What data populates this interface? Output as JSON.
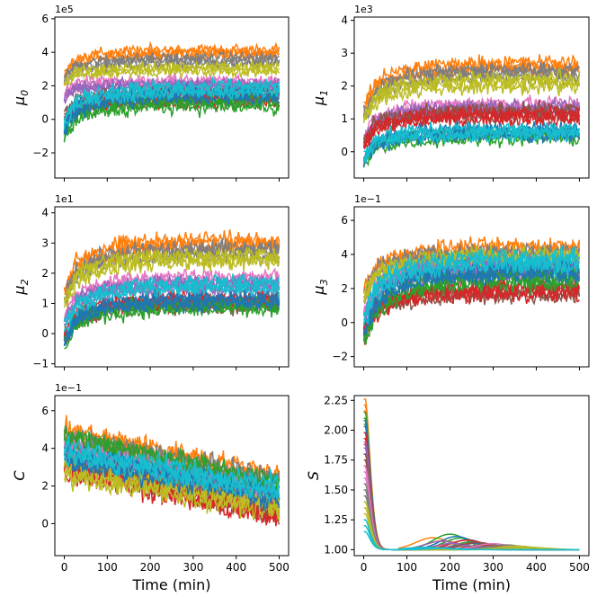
{
  "chart_data": [
    {
      "type": "line",
      "panel": "mu0",
      "ylabel": "μ",
      "ylabel_sub": "0",
      "multiplier": "1e5",
      "xlim": [
        -22,
        522
      ],
      "ylim": [
        -3.5,
        6.1
      ],
      "yticks": [
        -2,
        0,
        2,
        4,
        6
      ],
      "xticks": [
        0,
        100,
        200,
        300,
        400,
        500
      ],
      "x_tick_labels_shown": false,
      "series_bands": [
        {
          "start": 3.2,
          "end": 4.0,
          "spread": 0.5,
          "color": "#ff7f0e"
        },
        {
          "start": 2.9,
          "end": 3.5,
          "spread": 0.5,
          "color": "#7f7f7f"
        },
        {
          "start": 2.6,
          "end": 3.0,
          "spread": 0.45,
          "color": "#bcbd22"
        },
        {
          "start": 2.0,
          "end": 2.2,
          "spread": 0.45,
          "color": "#e377c2"
        },
        {
          "start": 1.8,
          "end": 2.0,
          "spread": 0.45,
          "color": "#9467bd"
        },
        {
          "start": 0.8,
          "end": 1.5,
          "spread": 0.55,
          "color": "#8c564b"
        },
        {
          "start": 0.5,
          "end": 1.2,
          "spread": 0.6,
          "color": "#d62728"
        },
        {
          "start": -0.2,
          "end": 1.0,
          "spread": 0.7,
          "color": "#2ca02c"
        },
        {
          "start": 0.2,
          "end": 1.5,
          "spread": 0.65,
          "color": "#1f77b4"
        },
        {
          "start": 0.6,
          "end": 1.8,
          "spread": 0.6,
          "color": "#17becf"
        }
      ]
    },
    {
      "type": "line",
      "panel": "mu1",
      "ylabel": "μ",
      "ylabel_sub": "1",
      "multiplier": "1e3",
      "xlim": [
        -22,
        522
      ],
      "ylim": [
        -0.8,
        4.1
      ],
      "yticks": [
        0,
        1,
        2,
        3,
        4
      ],
      "xticks": [
        0,
        100,
        200,
        300,
        400,
        500
      ],
      "x_tick_labels_shown": false,
      "series_bands": [
        {
          "start": 1.7,
          "end": 2.6,
          "spread": 0.35,
          "color": "#ff7f0e"
        },
        {
          "start": 1.5,
          "end": 2.4,
          "spread": 0.35,
          "color": "#7f7f7f"
        },
        {
          "start": 1.4,
          "end": 2.1,
          "spread": 0.35,
          "color": "#bcbd22"
        },
        {
          "start": 0.8,
          "end": 1.4,
          "spread": 0.3,
          "color": "#e377c2"
        },
        {
          "start": 0.7,
          "end": 1.3,
          "spread": 0.3,
          "color": "#9467bd"
        },
        {
          "start": 0.6,
          "end": 1.2,
          "spread": 0.3,
          "color": "#8c564b"
        },
        {
          "start": 0.5,
          "end": 1.1,
          "spread": 0.3,
          "color": "#d62728"
        },
        {
          "start": 0.0,
          "end": 0.5,
          "spread": 0.3,
          "color": "#2ca02c"
        },
        {
          "start": 0.1,
          "end": 0.6,
          "spread": 0.3,
          "color": "#1f77b4"
        },
        {
          "start": 0.2,
          "end": 0.6,
          "spread": 0.3,
          "color": "#17becf"
        }
      ]
    },
    {
      "type": "line",
      "panel": "mu2",
      "ylabel": "μ",
      "ylabel_sub": "2",
      "multiplier": "1e1",
      "xlim": [
        -22,
        522
      ],
      "ylim": [
        -1.1,
        4.2
      ],
      "yticks": [
        -1,
        0,
        1,
        2,
        3,
        4
      ],
      "xticks": [
        0,
        100,
        200,
        300,
        400,
        500
      ],
      "x_tick_labels_shown": false,
      "series_bands": [
        {
          "start": 1.9,
          "end": 3.0,
          "spread": 0.4,
          "color": "#ff7f0e"
        },
        {
          "start": 1.7,
          "end": 2.7,
          "spread": 0.4,
          "color": "#7f7f7f"
        },
        {
          "start": 1.5,
          "end": 2.5,
          "spread": 0.4,
          "color": "#bcbd22"
        },
        {
          "start": 0.9,
          "end": 1.8,
          "spread": 0.35,
          "color": "#e377c2"
        },
        {
          "start": 0.8,
          "end": 1.6,
          "spread": 0.35,
          "color": "#9467bd"
        },
        {
          "start": 0.2,
          "end": 1.0,
          "spread": 0.35,
          "color": "#8c564b"
        },
        {
          "start": 0.3,
          "end": 1.1,
          "spread": 0.35,
          "color": "#d62728"
        },
        {
          "start": 0.1,
          "end": 0.9,
          "spread": 0.35,
          "color": "#2ca02c"
        },
        {
          "start": 0.2,
          "end": 1.1,
          "spread": 0.35,
          "color": "#1f77b4"
        },
        {
          "start": 0.6,
          "end": 1.6,
          "spread": 0.35,
          "color": "#17becf"
        }
      ]
    },
    {
      "type": "line",
      "panel": "mu3",
      "ylabel": "μ",
      "ylabel_sub": "3",
      "multiplier": "1e−1",
      "xlim": [
        -22,
        522
      ],
      "ylim": [
        -2.6,
        6.8
      ],
      "yticks": [
        -2,
        0,
        2,
        4,
        6
      ],
      "xticks": [
        0,
        100,
        200,
        300,
        400,
        500
      ],
      "x_tick_labels_shown": false,
      "series_bands": [
        {
          "start": 2.6,
          "end": 4.3,
          "spread": 0.7,
          "color": "#ff7f0e"
        },
        {
          "start": 2.4,
          "end": 4.0,
          "spread": 0.7,
          "color": "#7f7f7f"
        },
        {
          "start": 2.3,
          "end": 3.8,
          "spread": 0.7,
          "color": "#bcbd22"
        },
        {
          "start": 1.2,
          "end": 3.0,
          "spread": 0.7,
          "color": "#e377c2"
        },
        {
          "start": 1.0,
          "end": 3.2,
          "spread": 0.7,
          "color": "#9467bd"
        },
        {
          "start": 0.2,
          "end": 1.8,
          "spread": 0.7,
          "color": "#8c564b"
        },
        {
          "start": 0.1,
          "end": 1.9,
          "spread": 0.7,
          "color": "#d62728"
        },
        {
          "start": -0.2,
          "end": 2.6,
          "spread": 0.8,
          "color": "#2ca02c"
        },
        {
          "start": 0.4,
          "end": 3.0,
          "spread": 0.7,
          "color": "#1f77b4"
        },
        {
          "start": 1.2,
          "end": 3.6,
          "spread": 0.8,
          "color": "#17becf"
        }
      ]
    },
    {
      "type": "line",
      "panel": "C",
      "ylabel": "C",
      "ylabel_sub": "",
      "multiplier": "1e−1",
      "xlim": [
        -22,
        522
      ],
      "ylim": [
        -1.7,
        6.8
      ],
      "yticks": [
        0,
        2,
        4,
        6
      ],
      "xticks": [
        0,
        100,
        200,
        300,
        400,
        500
      ],
      "x_tick_labels_shown": true,
      "xlabel": "Time (min)",
      "series_bands": [
        {
          "start": 4.8,
          "end": 2.4,
          "spread": 0.8,
          "color": "#ff7f0e"
        },
        {
          "start": 4.4,
          "end": 2.2,
          "spread": 0.8,
          "color": "#7f7f7f"
        },
        {
          "start": 4.5,
          "end": 2.0,
          "spread": 0.8,
          "color": "#2ca02c"
        },
        {
          "start": 3.8,
          "end": 1.2,
          "spread": 0.8,
          "color": "#e377c2"
        },
        {
          "start": 3.5,
          "end": 1.0,
          "spread": 0.8,
          "color": "#9467bd"
        },
        {
          "start": 3.3,
          "end": 0.6,
          "spread": 0.8,
          "color": "#8c564b"
        },
        {
          "start": 3.0,
          "end": 0.4,
          "spread": 0.8,
          "color": "#d62728"
        },
        {
          "start": 2.7,
          "end": 0.9,
          "spread": 0.8,
          "color": "#bcbd22"
        },
        {
          "start": 3.6,
          "end": 1.5,
          "spread": 0.8,
          "color": "#1f77b4"
        },
        {
          "start": 3.8,
          "end": 1.8,
          "spread": 0.8,
          "color": "#17becf"
        }
      ]
    },
    {
      "type": "line",
      "panel": "S",
      "ylabel": "S",
      "ylabel_sub": "",
      "multiplier": "",
      "xlim": [
        -22,
        522
      ],
      "ylim": [
        0.95,
        2.29
      ],
      "yticks": [
        1.0,
        1.25,
        1.5,
        1.75,
        2.0,
        2.25
      ],
      "ytick_labels": [
        "1.00",
        "1.25",
        "1.50",
        "1.75",
        "2.00",
        "2.25"
      ],
      "xticks": [
        0,
        100,
        200,
        300,
        400,
        500
      ],
      "x_tick_labels_shown": true,
      "xlabel": "Time (min)",
      "decay_series": [
        {
          "peak": 2.26,
          "bump_center": 160,
          "bump_height": 0.1,
          "color": "#ff7f0e"
        },
        {
          "peak": 2.15,
          "bump_center": 200,
          "bump_height": 0.13,
          "color": "#2ca02c"
        },
        {
          "peak": 2.08,
          "bump_center": 215,
          "bump_height": 0.11,
          "color": "#1f77b4"
        },
        {
          "peak": 1.98,
          "bump_center": 240,
          "bump_height": 0.08,
          "color": "#d62728"
        },
        {
          "peak": 1.9,
          "bump_center": 180,
          "bump_height": 0.07,
          "color": "#9467bd"
        },
        {
          "peak": 1.8,
          "bump_center": 260,
          "bump_height": 0.06,
          "color": "#8c564b"
        },
        {
          "peak": 1.7,
          "bump_center": 300,
          "bump_height": 0.05,
          "color": "#e377c2"
        },
        {
          "peak": 1.55,
          "bump_center": 330,
          "bump_height": 0.04,
          "color": "#7f7f7f"
        },
        {
          "peak": 1.4,
          "bump_center": 350,
          "bump_height": 0.03,
          "color": "#bcbd22"
        },
        {
          "peak": 1.25,
          "bump_center": 140,
          "bump_height": 0.02,
          "color": "#17becf"
        }
      ]
    }
  ]
}
